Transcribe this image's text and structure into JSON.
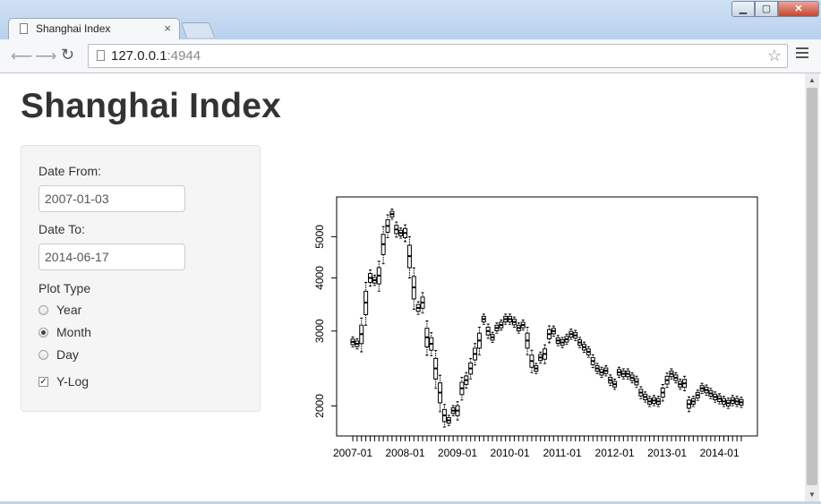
{
  "browser": {
    "tab_title": "Shanghai Index",
    "tab_close": "×",
    "url_host": "127.0.0.1",
    "url_port": ":4944",
    "back_icon": "arrow-left-icon",
    "forward_icon": "arrow-right-icon",
    "reload_icon": "reload-icon",
    "star_icon": "star-icon",
    "menu_icon": "hamburger-menu-icon"
  },
  "page": {
    "title": "Shanghai Index"
  },
  "sidebar": {
    "date_from_label": "Date From:",
    "date_from_value": "2007-01-03",
    "date_to_label": "Date To:",
    "date_to_value": "2014-06-17",
    "plot_type_label": "Plot Type",
    "plot_type_options": [
      {
        "label": "Year",
        "selected": false
      },
      {
        "label": "Month",
        "selected": true
      },
      {
        "label": "Day",
        "selected": false
      }
    ],
    "ylog_label": "Y-Log",
    "ylog_checked": true
  },
  "chart_data": {
    "type": "boxplot",
    "y_scale": "log",
    "ylim": [
      1700,
      6200
    ],
    "y_ticks": [
      2000,
      3000,
      4000,
      5000
    ],
    "y_tick_labels": [
      "2000",
      "3000",
      "4000",
      "5000"
    ],
    "x_tick_labels": [
      "2007-01",
      "2008-01",
      "2009-01",
      "2010-01",
      "2011-01",
      "2012-01",
      "2013-01",
      "2014-01"
    ],
    "months_per_label": 12,
    "n_months": 90,
    "monthly_median": [
      2830,
      2800,
      2950,
      3500,
      4000,
      3950,
      4050,
      4800,
      5300,
      5650,
      5200,
      5100,
      5100,
      4500,
      3800,
      3400,
      3500,
      2900,
      2800,
      2450,
      2150,
      1900,
      1850,
      1950,
      1950,
      2200,
      2300,
      2450,
      2650,
      2850,
      3200,
      3000,
      2900,
      3050,
      3100,
      3200,
      3200,
      3150,
      3050,
      3100,
      2850,
      2550,
      2450,
      2600,
      2650,
      2950,
      3000,
      2850,
      2820,
      2870,
      2950,
      2930,
      2820,
      2750,
      2680,
      2550,
      2450,
      2400,
      2420,
      2300,
      2250,
      2400,
      2380,
      2380,
      2330,
      2280,
      2150,
      2100,
      2050,
      2060,
      2050,
      2150,
      2300,
      2380,
      2330,
      2250,
      2260,
      2020,
      2050,
      2120,
      2200,
      2180,
      2140,
      2100,
      2080,
      2050,
      2030,
      2060,
      2050,
      2040
    ]
  }
}
